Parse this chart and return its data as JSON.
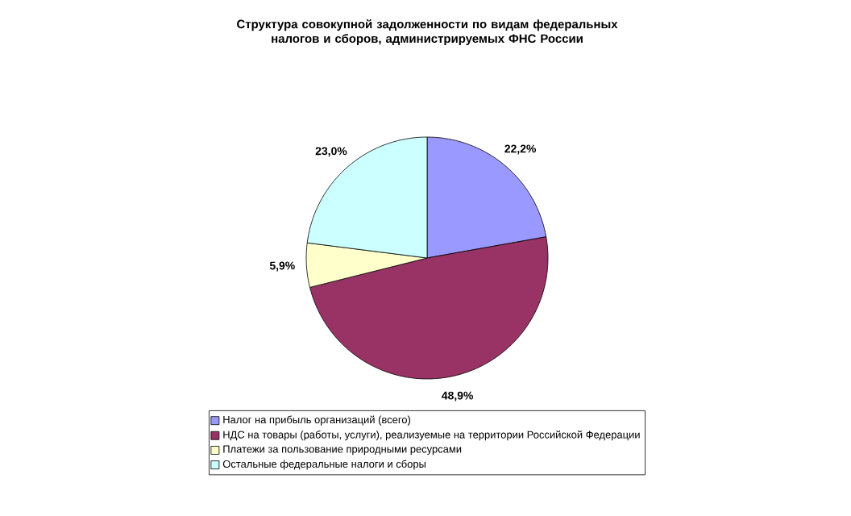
{
  "chart_data": {
    "type": "pie",
    "title": "Структура совокупной задолженности по видам федеральных налогов и сборов, администрируемых ФНС России",
    "categories": [
      "Налог на прибыль организаций (всего)",
      "НДС на товары (работы, услуги), реализуемые на территории Российской Федерации",
      "Платежи за пользование природными ресурсами",
      "Остальные федеральные налоги и сборы"
    ],
    "values": [
      22.2,
      48.9,
      5.9,
      23.0
    ],
    "value_labels": [
      "22,2%",
      "48,9%",
      "5,9%",
      "23,0%"
    ],
    "colors": [
      "#9999ff",
      "#993366",
      "#ffffcc",
      "#ccffff"
    ],
    "legend": "bottom"
  }
}
